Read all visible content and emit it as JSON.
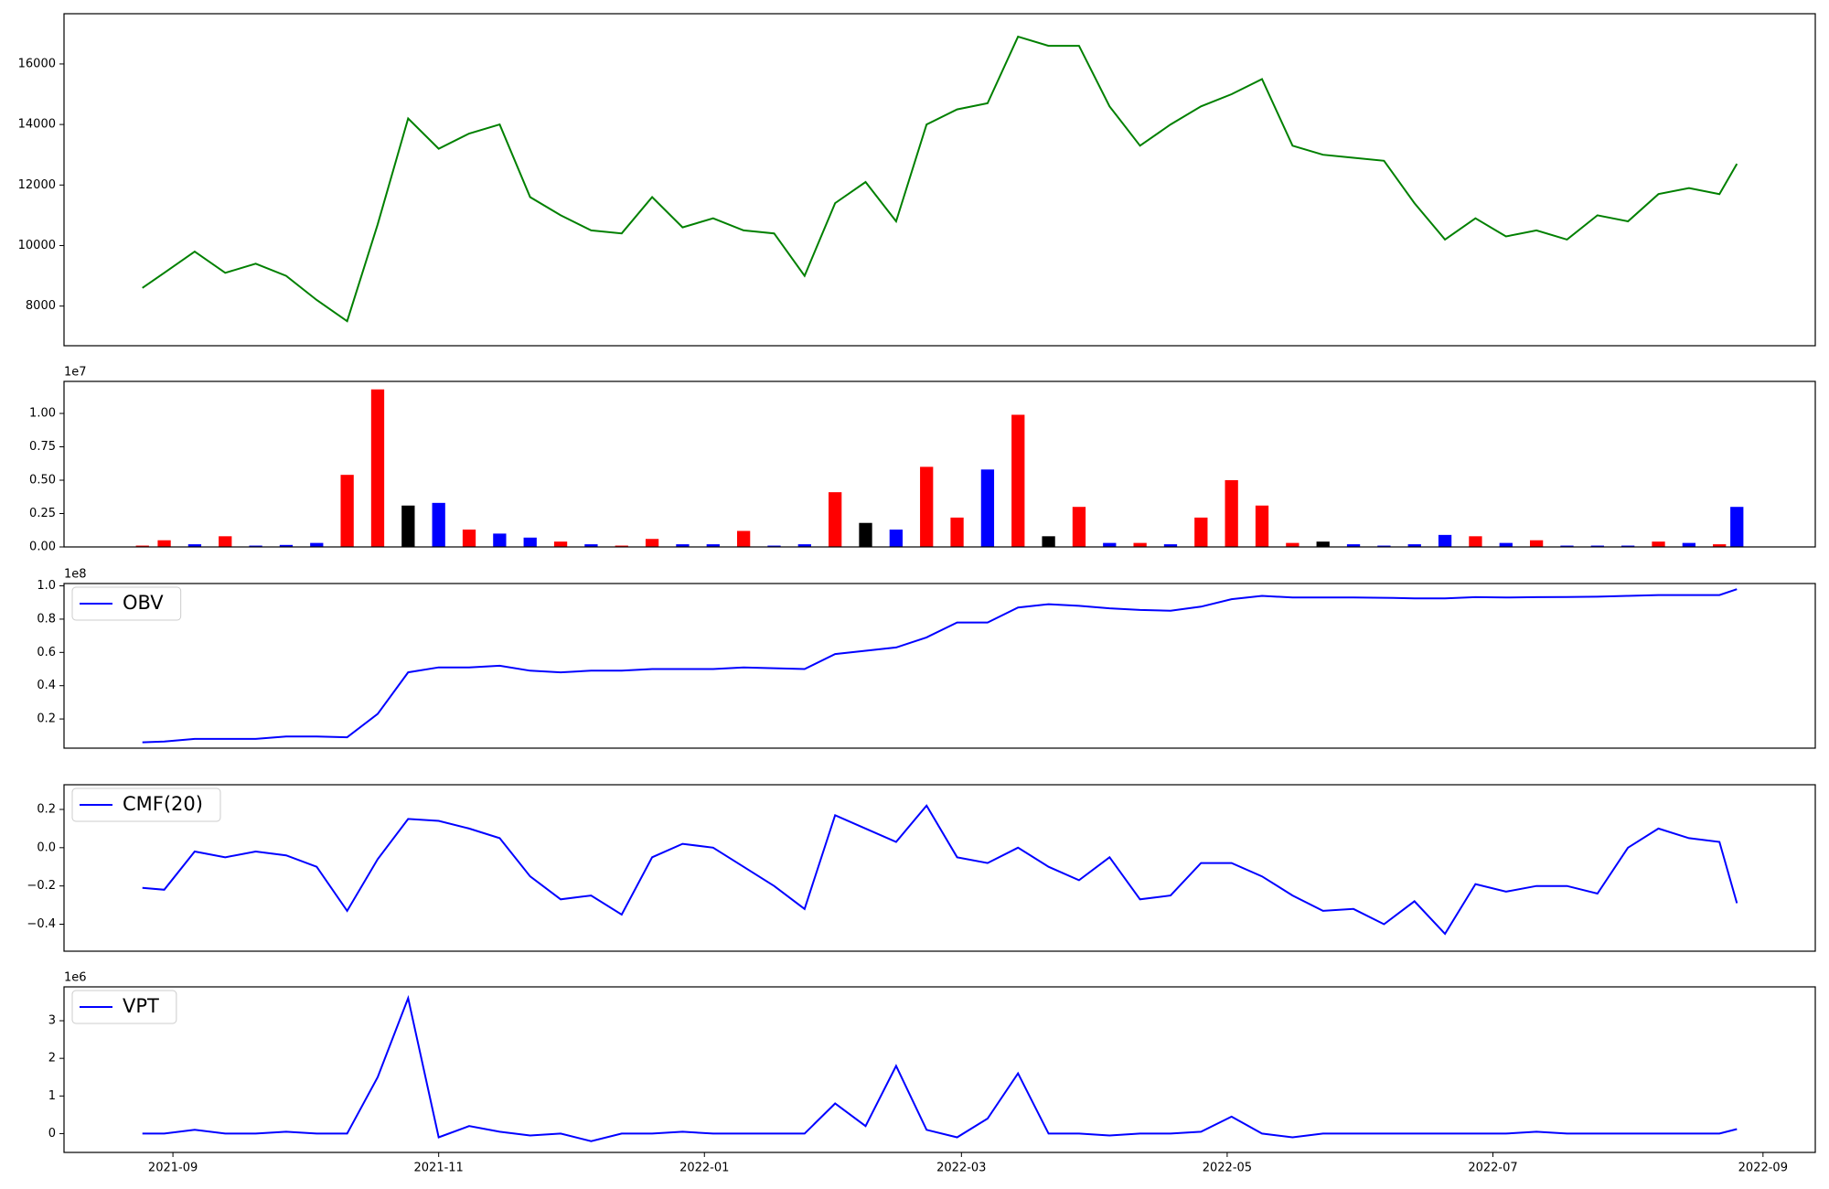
{
  "chart_data": [
    {
      "type": "line",
      "color": "#008000",
      "x": [
        "2021-08-25",
        "2021-08-30",
        "2021-09-06",
        "2021-09-13",
        "2021-09-20",
        "2021-09-27",
        "2021-10-04",
        "2021-10-11",
        "2021-10-18",
        "2021-10-25",
        "2021-11-01",
        "2021-11-08",
        "2021-11-15",
        "2021-11-22",
        "2021-11-29",
        "2021-12-06",
        "2021-12-13",
        "2021-12-20",
        "2021-12-27",
        "2022-01-03",
        "2022-01-10",
        "2022-01-17",
        "2022-01-24",
        "2022-01-31",
        "2022-02-07",
        "2022-02-14",
        "2022-02-21",
        "2022-02-28",
        "2022-03-07",
        "2022-03-14",
        "2022-03-21",
        "2022-03-28",
        "2022-04-04",
        "2022-04-11",
        "2022-04-18",
        "2022-04-25",
        "2022-05-02",
        "2022-05-09",
        "2022-05-16",
        "2022-05-23",
        "2022-05-30",
        "2022-06-06",
        "2022-06-13",
        "2022-06-20",
        "2022-06-27",
        "2022-07-04",
        "2022-07-11",
        "2022-07-18",
        "2022-07-25",
        "2022-08-01",
        "2022-08-08",
        "2022-08-15",
        "2022-08-22",
        "2022-08-26"
      ],
      "values": [
        8600,
        9100,
        9800,
        9100,
        9400,
        9000,
        8200,
        7500,
        10700,
        14200,
        13200,
        13700,
        14000,
        11600,
        11000,
        10500,
        10400,
        11600,
        10600,
        10900,
        10500,
        10400,
        9000,
        11400,
        12100,
        10800,
        14000,
        14500,
        14700,
        16900,
        16600,
        16600,
        14600,
        13300,
        14000,
        14600,
        15000,
        15500,
        13300,
        13000,
        12900,
        12800,
        11400,
        10200,
        10900,
        10300,
        10500,
        10200,
        11000,
        10800,
        11700,
        11900,
        11700,
        12700
      ],
      "xlim": [
        "2021-08-07",
        "2022-09-13"
      ],
      "ylim": [
        6690,
        17660
      ],
      "yticks": [
        8000,
        10000,
        12000,
        14000,
        16000
      ]
    },
    {
      "type": "bar",
      "offset_label": "1e7",
      "x": [
        "2021-08-25",
        "2021-08-30",
        "2021-09-06",
        "2021-09-13",
        "2021-09-20",
        "2021-09-27",
        "2021-10-04",
        "2021-10-11",
        "2021-10-18",
        "2021-10-25",
        "2021-11-01",
        "2021-11-08",
        "2021-11-15",
        "2021-11-22",
        "2021-11-29",
        "2021-12-06",
        "2021-12-13",
        "2021-12-20",
        "2021-12-27",
        "2022-01-03",
        "2022-01-10",
        "2022-01-17",
        "2022-01-24",
        "2022-01-31",
        "2022-02-07",
        "2022-02-14",
        "2022-02-21",
        "2022-02-28",
        "2022-03-07",
        "2022-03-14",
        "2022-03-21",
        "2022-03-28",
        "2022-04-04",
        "2022-04-11",
        "2022-04-18",
        "2022-04-25",
        "2022-05-02",
        "2022-05-09",
        "2022-05-16",
        "2022-05-23",
        "2022-05-30",
        "2022-06-06",
        "2022-06-13",
        "2022-06-20",
        "2022-06-27",
        "2022-07-04",
        "2022-07-11",
        "2022-07-18",
        "2022-07-25",
        "2022-08-01",
        "2022-08-08",
        "2022-08-15",
        "2022-08-22",
        "2022-08-26"
      ],
      "values": [
        100000,
        500000,
        200000,
        800000,
        100000,
        150000,
        300000,
        5400000,
        11800000,
        3100000,
        3300000,
        1300000,
        1000000,
        700000,
        400000,
        200000,
        100000,
        600000,
        200000,
        200000,
        1200000,
        100000,
        200000,
        4100000,
        1800000,
        1300000,
        6000000,
        2200000,
        5800000,
        9900000,
        800000,
        3000000,
        300000,
        300000,
        200000,
        2200000,
        5000000,
        3100000,
        300000,
        400000,
        200000,
        100000,
        200000,
        900000,
        800000,
        300000,
        500000,
        100000,
        100000,
        100000,
        400000,
        300000,
        200000,
        3000000
      ],
      "colors": [
        "red",
        "red",
        "blue",
        "red",
        "blue",
        "blue",
        "blue",
        "red",
        "red",
        "black",
        "blue",
        "red",
        "blue",
        "blue",
        "red",
        "blue",
        "red",
        "red",
        "blue",
        "blue",
        "red",
        "blue",
        "blue",
        "red",
        "black",
        "blue",
        "red",
        "red",
        "blue",
        "red",
        "black",
        "red",
        "blue",
        "red",
        "blue",
        "red",
        "red",
        "red",
        "red",
        "black",
        "blue",
        "blue",
        "blue",
        "blue",
        "red",
        "blue",
        "red",
        "blue",
        "blue",
        "blue",
        "red",
        "blue",
        "red",
        "blue"
      ],
      "xlim": [
        "2021-08-07",
        "2022-09-13"
      ],
      "ylim": [
        0,
        12400000
      ],
      "yticks": [
        {
          "value": 0,
          "label": "0.00"
        },
        {
          "value": 2500000,
          "label": "0.25"
        },
        {
          "value": 5000000,
          "label": "0.50"
        },
        {
          "value": 7500000,
          "label": "0.75"
        },
        {
          "value": 10000000,
          "label": "1.00"
        }
      ]
    },
    {
      "type": "line",
      "offset_label": "1e8",
      "legend": "upper left",
      "x": [
        "2021-08-25",
        "2021-08-30",
        "2021-09-06",
        "2021-09-13",
        "2021-09-20",
        "2021-09-27",
        "2021-10-04",
        "2021-10-11",
        "2021-10-18",
        "2021-10-25",
        "2021-11-01",
        "2021-11-08",
        "2021-11-15",
        "2021-11-22",
        "2021-11-29",
        "2021-12-06",
        "2021-12-13",
        "2021-12-20",
        "2021-12-27",
        "2022-01-03",
        "2022-01-10",
        "2022-01-17",
        "2022-01-24",
        "2022-01-31",
        "2022-02-07",
        "2022-02-14",
        "2022-02-21",
        "2022-02-28",
        "2022-03-07",
        "2022-03-14",
        "2022-03-21",
        "2022-03-28",
        "2022-04-04",
        "2022-04-11",
        "2022-04-18",
        "2022-04-25",
        "2022-05-02",
        "2022-05-09",
        "2022-05-16",
        "2022-05-23",
        "2022-05-30",
        "2022-06-06",
        "2022-06-13",
        "2022-06-20",
        "2022-06-27",
        "2022-07-04",
        "2022-07-11",
        "2022-07-18",
        "2022-07-25",
        "2022-08-01",
        "2022-08-08",
        "2022-08-15",
        "2022-08-22",
        "2022-08-26"
      ],
      "series": [
        {
          "name": "OBV",
          "color": "#0000ff",
          "values": [
            6000000,
            6500000,
            8000000,
            8000000,
            8000000,
            9500000,
            9500000,
            9000000,
            23000000,
            48000000,
            51000000,
            51000000,
            52000000,
            49000000,
            48000000,
            49000000,
            49000000,
            50000000,
            50000000,
            50000000,
            51000000,
            50500000,
            50000000,
            59000000,
            61000000,
            63000000,
            69000000,
            78000000,
            78000000,
            87000000,
            89000000,
            88000000,
            86500000,
            85500000,
            85000000,
            87500000,
            92000000,
            94000000,
            93000000,
            93000000,
            93000000,
            92800000,
            92500000,
            92500000,
            93200000,
            93000000,
            93200000,
            93300000,
            93500000,
            94000000,
            94500000,
            94500000,
            94500000,
            98000000
          ]
        }
      ],
      "xlim": [
        "2021-08-07",
        "2022-09-13"
      ],
      "ylim": [
        2460000,
        101400000
      ],
      "yticks": [
        {
          "value": 20000000,
          "label": "0.2"
        },
        {
          "value": 40000000,
          "label": "0.4"
        },
        {
          "value": 60000000,
          "label": "0.6"
        },
        {
          "value": 80000000,
          "label": "0.8"
        },
        {
          "value": 100000000,
          "label": "1.0"
        }
      ]
    },
    {
      "type": "line",
      "legend": "upper left",
      "x": [
        "2021-08-25",
        "2021-08-30",
        "2021-09-06",
        "2021-09-13",
        "2021-09-20",
        "2021-09-27",
        "2021-10-04",
        "2021-10-11",
        "2021-10-18",
        "2021-10-25",
        "2021-11-01",
        "2021-11-08",
        "2021-11-15",
        "2021-11-22",
        "2021-11-29",
        "2021-12-06",
        "2021-12-13",
        "2021-12-20",
        "2021-12-27",
        "2022-01-03",
        "2022-01-10",
        "2022-01-17",
        "2022-01-24",
        "2022-01-31",
        "2022-02-07",
        "2022-02-14",
        "2022-02-21",
        "2022-02-28",
        "2022-03-07",
        "2022-03-14",
        "2022-03-21",
        "2022-03-28",
        "2022-04-04",
        "2022-04-11",
        "2022-04-18",
        "2022-04-25",
        "2022-05-02",
        "2022-05-09",
        "2022-05-16",
        "2022-05-23",
        "2022-05-30",
        "2022-06-06",
        "2022-06-13",
        "2022-06-20",
        "2022-06-27",
        "2022-07-04",
        "2022-07-11",
        "2022-07-18",
        "2022-07-25",
        "2022-08-01",
        "2022-08-08",
        "2022-08-15",
        "2022-08-22",
        "2022-08-26"
      ],
      "series": [
        {
          "name": "CMF(20)",
          "color": "#0000ff",
          "values": [
            -0.21,
            -0.22,
            -0.02,
            -0.05,
            -0.02,
            -0.04,
            -0.1,
            -0.33,
            -0.06,
            0.15,
            0.14,
            0.1,
            0.05,
            -0.15,
            -0.27,
            -0.25,
            -0.35,
            -0.05,
            0.02,
            0.0,
            -0.1,
            -0.2,
            -0.32,
            0.17,
            0.1,
            0.03,
            0.22,
            -0.05,
            -0.08,
            0.0,
            -0.1,
            -0.17,
            -0.05,
            -0.27,
            -0.25,
            -0.08,
            -0.08,
            -0.15,
            -0.25,
            -0.33,
            -0.32,
            -0.4,
            -0.28,
            -0.45,
            -0.19,
            -0.23,
            -0.2,
            -0.2,
            -0.24,
            0.0,
            0.1,
            0.05,
            0.03,
            -0.29
          ]
        }
      ],
      "xlim": [
        "2021-08-07",
        "2022-09-13"
      ],
      "ylim": [
        -0.541,
        0.329
      ],
      "yticks": [
        {
          "value": -0.4,
          "label": "−0.4"
        },
        {
          "value": -0.2,
          "label": "−0.2"
        },
        {
          "value": 0,
          "label": "0.0"
        },
        {
          "value": 0.2,
          "label": "0.2"
        }
      ]
    },
    {
      "type": "line",
      "offset_label": "1e6",
      "legend": "upper left",
      "x": [
        "2021-08-25",
        "2021-08-30",
        "2021-09-06",
        "2021-09-13",
        "2021-09-20",
        "2021-09-27",
        "2021-10-04",
        "2021-10-11",
        "2021-10-18",
        "2021-10-25",
        "2021-11-01",
        "2021-11-08",
        "2021-11-15",
        "2021-11-22",
        "2021-11-29",
        "2021-12-06",
        "2021-12-13",
        "2021-12-20",
        "2021-12-27",
        "2022-01-03",
        "2022-01-10",
        "2022-01-17",
        "2022-01-24",
        "2022-01-31",
        "2022-02-07",
        "2022-02-14",
        "2022-02-21",
        "2022-02-28",
        "2022-03-07",
        "2022-03-14",
        "2022-03-21",
        "2022-03-28",
        "2022-04-04",
        "2022-04-11",
        "2022-04-18",
        "2022-04-25",
        "2022-05-02",
        "2022-05-09",
        "2022-05-16",
        "2022-05-23",
        "2022-05-30",
        "2022-06-06",
        "2022-06-13",
        "2022-06-20",
        "2022-06-27",
        "2022-07-04",
        "2022-07-11",
        "2022-07-18",
        "2022-07-25",
        "2022-08-01",
        "2022-08-08",
        "2022-08-15",
        "2022-08-22",
        "2022-08-26"
      ],
      "series": [
        {
          "name": "VPT",
          "color": "#0000ff",
          "values": [
            0,
            0,
            100000,
            0,
            0,
            50000,
            0,
            0,
            1500000,
            3600000,
            -100000,
            200000,
            50000,
            -50000,
            0,
            -200000,
            0,
            0,
            50000,
            0,
            0,
            0,
            0,
            800000,
            200000,
            1800000,
            100000,
            -100000,
            400000,
            1600000,
            0,
            0,
            -50000,
            0,
            0,
            50000,
            450000,
            0,
            -100000,
            0,
            0,
            0,
            0,
            0,
            0,
            0,
            50000,
            0,
            0,
            0,
            0,
            0,
            0,
            120000
          ]
        }
      ],
      "xlim": [
        "2021-08-07",
        "2022-09-13"
      ],
      "ylim": [
        -500000,
        3900000
      ],
      "yticks": [
        {
          "value": 0,
          "label": "0"
        },
        {
          "value": 1000000,
          "label": "1"
        },
        {
          "value": 2000000,
          "label": "2"
        },
        {
          "value": 3000000,
          "label": "3"
        }
      ],
      "xticks": [
        {
          "value": "2021-09-01",
          "label": "2021-09"
        },
        {
          "value": "2021-11-01",
          "label": "2021-11"
        },
        {
          "value": "2022-01-01",
          "label": "2022-01"
        },
        {
          "value": "2022-03-01",
          "label": "2022-03"
        },
        {
          "value": "2022-05-01",
          "label": "2022-05"
        },
        {
          "value": "2022-07-01",
          "label": "2022-07"
        },
        {
          "value": "2022-09-01",
          "label": "2022-09"
        }
      ]
    }
  ]
}
